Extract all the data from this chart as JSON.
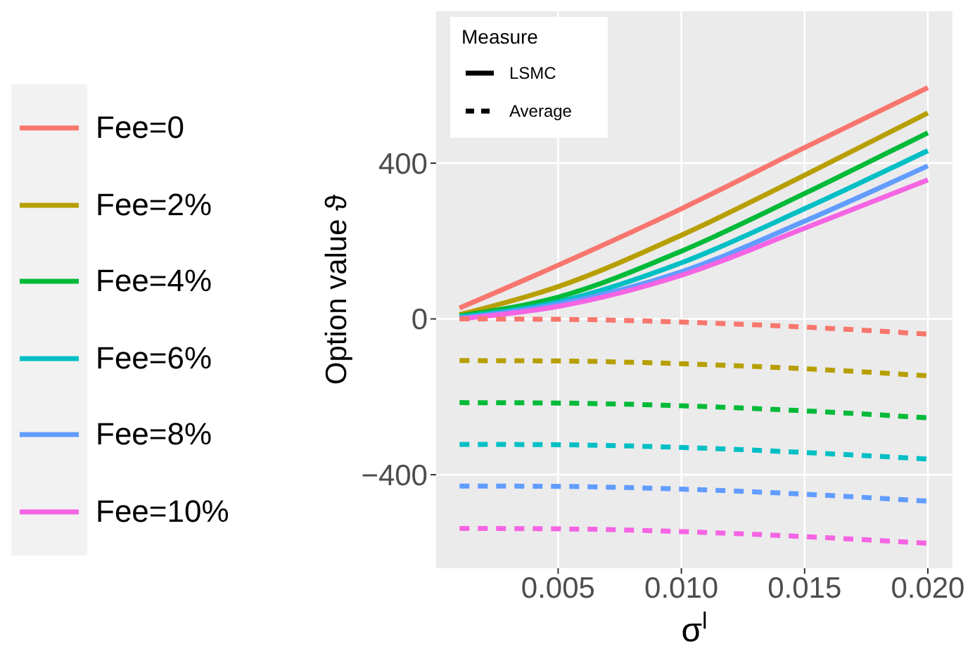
{
  "chart_data": {
    "type": "line",
    "xlabel": "σ$^{l}$",
    "ylabel": "Option value ϑ",
    "legend_title": "Measure",
    "annotations": [
      "LSMC",
      "Average"
    ],
    "x": [
      0.001,
      0.005,
      0.01,
      0.015,
      0.02
    ],
    "xlim": [
      5e-05,
      0.021
    ],
    "xticks": [
      0.005,
      {
        "value": 0.01,
        "label": "0.010"
      },
      0.015,
      {
        "value": 0.02,
        "label": "0.020"
      }
    ],
    "ylim": [
      -640,
      790
    ],
    "yticks": [
      {
        "value": -400,
        "label": "−400"
      },
      0,
      400
    ],
    "grid": true,
    "legend": "left",
    "marker": "none",
    "series": [
      {
        "name": "Fee=0",
        "color": "#f8766d",
        "line_style": "solid",
        "values": [
          28,
          138,
          283,
          440,
          594
        ]
      },
      {
        "name": "Fee=2%",
        "color": "#b79f00",
        "line_style": "solid",
        "values": [
          11,
          83,
          215,
          369,
          529
        ]
      },
      {
        "name": "Fee=4%",
        "color": "#00ba38",
        "line_style": "solid",
        "values": [
          8,
          56,
          174,
          322,
          478
        ]
      },
      {
        "name": "Fee=6%",
        "color": "#00bfc4",
        "line_style": "solid",
        "values": [
          5,
          44,
          144,
          283,
          432
        ]
      },
      {
        "name": "Fee=8%",
        "color": "#619cff",
        "line_style": "solid",
        "values": [
          2,
          38,
          121,
          251,
          393
        ]
      },
      {
        "name": "Fee=10%",
        "color": "#f564e3",
        "line_style": "solid",
        "values": [
          0,
          32,
          112,
          233,
          357
        ]
      },
      {
        "color": "#f8766d",
        "line_style": "dashed",
        "values": [
          0,
          -1,
          -8,
          -21,
          -39
        ]
      },
      {
        "color": "#b79f00",
        "line_style": "dashed",
        "values": [
          -107,
          -108,
          -115,
          -128,
          -146
        ]
      },
      {
        "color": "#00ba38",
        "line_style": "dashed",
        "values": [
          -215,
          -216,
          -223,
          -236,
          -254
        ]
      },
      {
        "color": "#00bfc4",
        "line_style": "dashed",
        "values": [
          -322,
          -323,
          -330,
          -343,
          -360
        ]
      },
      {
        "color": "#619cff",
        "line_style": "dashed",
        "values": [
          -429,
          -430,
          -437,
          -450,
          -468
        ]
      },
      {
        "color": "#f564e3",
        "line_style": "dashed",
        "values": [
          -538,
          -539,
          -546,
          -559,
          -576
        ]
      }
    ]
  }
}
